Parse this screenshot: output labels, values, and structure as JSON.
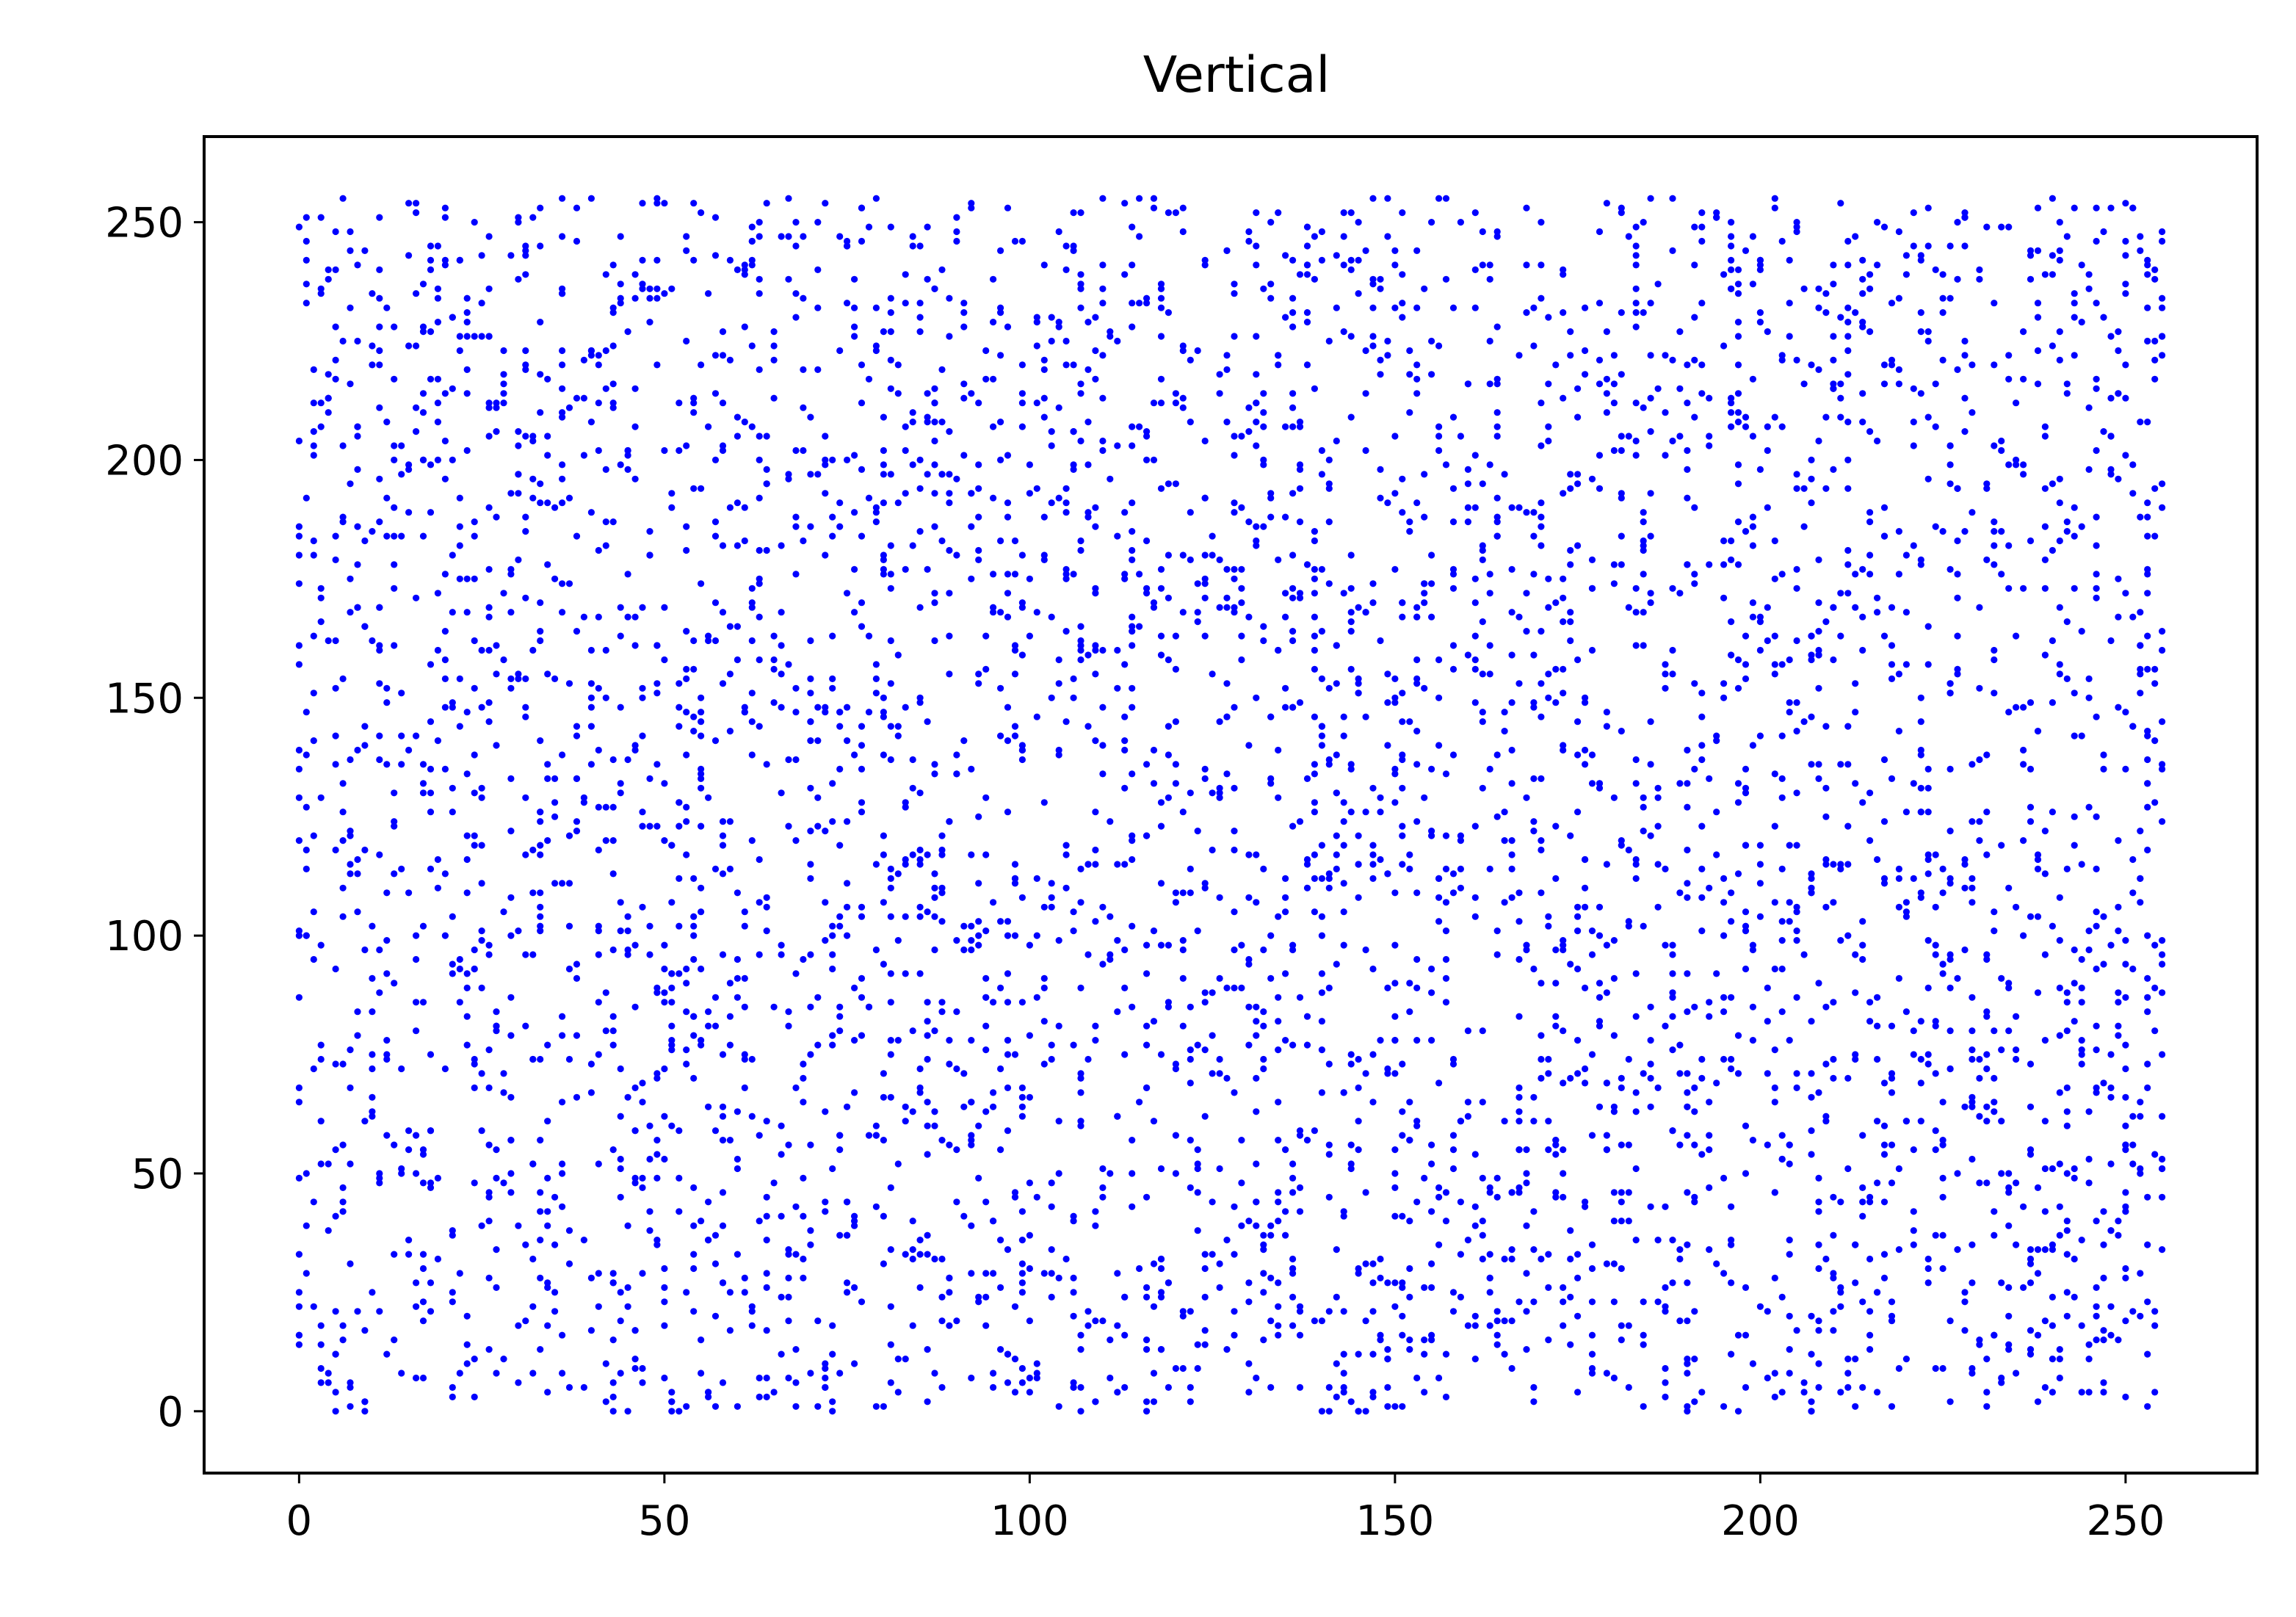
{
  "chart_data": {
    "type": "scatter",
    "title": "Vertical",
    "xlabel": "",
    "ylabel": "",
    "xlim": [
      -13,
      268
    ],
    "ylim": [
      -13,
      268
    ],
    "xticks": [
      0,
      50,
      100,
      150,
      200,
      250
    ],
    "yticks": [
      0,
      50,
      100,
      150,
      200,
      250
    ],
    "grid": false,
    "legend": "none",
    "marker_color": "#0000ff",
    "series": [
      {
        "n_points": 4600,
        "points": [
          [
            0,
            87
          ],
          [
            0,
            139
          ],
          [
            1,
            233
          ],
          [
            1,
            251
          ],
          [
            3,
            14
          ],
          [
            5,
            0
          ],
          [
            6,
            47
          ],
          [
            8,
            207
          ],
          [
            9,
            2
          ],
          [
            11,
            161
          ],
          [
            12,
            99
          ],
          [
            14,
            50
          ],
          [
            15,
            243
          ],
          [
            17,
            33
          ],
          [
            19,
            172
          ],
          [
            20,
            253
          ],
          [
            22,
            8
          ],
          [
            24,
            119
          ],
          [
            26,
            226
          ],
          [
            27,
            81
          ],
          [
            29,
            57
          ],
          [
            31,
            188
          ],
          [
            33,
            13
          ],
          [
            34,
            136
          ],
          [
            36,
            247
          ],
          [
            38,
            66
          ],
          [
            40,
            153
          ],
          [
            41,
            29
          ],
          [
            43,
            212
          ],
          [
            45,
            96
          ],
          [
            47,
            6
          ],
          [
            48,
            180
          ],
          [
            50,
            254
          ],
          [
            52,
            123
          ],
          [
            54,
            47
          ],
          [
            55,
            220
          ],
          [
            57,
            1
          ],
          [
            59,
            165
          ],
          [
            61,
            85
          ],
          [
            62,
            241
          ],
          [
            64,
            36
          ],
          [
            66,
            130
          ],
          [
            68,
            250
          ],
          [
            69,
            70
          ],
          [
            71,
            197
          ],
          [
            73,
            18
          ],
          [
            75,
            111
          ],
          [
            76,
            232
          ],
          [
            78,
            58
          ],
          [
            80,
            150
          ],
          [
            82,
            4
          ],
          [
            83,
            207
          ],
          [
            85,
            92
          ],
          [
            87,
            170
          ],
          [
            89,
            28
          ],
          [
            90,
            246
          ],
          [
            92,
            117
          ],
          [
            94,
            63
          ],
          [
            96,
            183
          ],
          [
            97,
            12
          ],
          [
            99,
            137
          ],
          [
            101,
            224
          ],
          [
            103,
            77
          ],
          [
            104,
            158
          ],
          [
            106,
            20
          ],
          [
            108,
            199
          ],
          [
            110,
            106
          ],
          [
            111,
            50
          ],
          [
            113,
            175
          ],
          [
            115,
            255
          ],
          [
            117,
            2
          ],
          [
            118,
            128
          ],
          [
            120,
            214
          ],
          [
            122,
            69
          ],
          [
            124,
            163
          ],
          [
            125,
            33
          ],
          [
            127,
            244
          ],
          [
            129,
            98
          ],
          [
            131,
            186
          ],
          [
            132,
            15
          ],
          [
            134,
            139
          ],
          [
            136,
            228
          ],
          [
            138,
            57
          ],
          [
            139,
            112
          ],
          [
            141,
            200
          ],
          [
            143,
            41
          ],
          [
            145,
            154
          ],
          [
            146,
            0
          ],
          [
            148,
            236
          ],
          [
            150,
            83
          ],
          [
            152,
            218
          ],
          [
            153,
            154
          ],
          [
            155,
            31
          ],
          [
            157,
            121
          ],
          [
            159,
            205
          ],
          [
            160,
            62
          ],
          [
            162,
            145
          ],
          [
            164,
            247
          ],
          [
            166,
            9
          ],
          [
            167,
            103
          ],
          [
            169,
            189
          ],
          [
            171,
            74
          ],
          [
            173,
            166
          ],
          [
            174,
            24
          ],
          [
            176,
            232
          ],
          [
            178,
            132
          ],
          [
            180,
            46
          ],
          [
            181,
            202
          ],
          [
            183,
            112
          ],
          [
            185,
            255
          ],
          [
            187,
            22
          ],
          [
            188,
            88
          ],
          [
            190,
            178
          ],
          [
            192,
            54
          ],
          [
            194,
            141
          ],
          [
            195,
            224
          ],
          [
            197,
            16
          ],
          [
            199,
            97
          ],
          [
            201,
            190
          ],
          [
            202,
            68
          ],
          [
            204,
            149
          ],
          [
            206,
            236
          ],
          [
            208,
            35
          ],
          [
            209,
            125
          ],
          [
            211,
            209
          ],
          [
            213,
            1
          ],
          [
            215,
            82
          ],
          [
            216,
            171
          ],
          [
            218,
            48
          ],
          [
            220,
            157
          ],
          [
            222,
            243
          ],
          [
            223,
            27
          ],
          [
            225,
            109
          ],
          [
            227,
            194
          ],
          [
            229,
            66
          ],
          [
            230,
            137
          ],
          [
            232,
            220
          ],
          [
            234,
            14
          ],
          [
            236,
            100
          ],
          [
            237,
            183
          ],
          [
            239,
            42
          ],
          [
            241,
            155
          ],
          [
            243,
            233
          ],
          [
            244,
            76
          ],
          [
            246,
            125
          ],
          [
            248,
            205
          ],
          [
            250,
            3
          ],
          [
            251,
            93
          ],
          [
            253,
            177
          ],
          [
            255,
            53
          ],
          [
            2,
            203
          ],
          [
            4,
            240
          ],
          [
            7,
            115
          ],
          [
            9,
            61
          ],
          [
            13,
            190
          ],
          [
            16,
            142
          ],
          [
            18,
            21
          ],
          [
            21,
            230
          ],
          [
            23,
            89
          ],
          [
            25,
            160
          ],
          [
            28,
            11
          ],
          [
            30,
            203
          ],
          [
            32,
            74
          ],
          [
            35,
            128
          ],
          [
            37,
            38
          ],
          [
            39,
            221
          ],
          [
            42,
            182
          ],
          [
            44,
            8
          ],
          [
            46,
            139
          ],
          [
            49,
            54
          ],
          [
            51,
            236
          ],
          [
            53,
            90
          ],
          [
            56,
            163
          ],
          [
            58,
            27
          ],
          [
            60,
            209
          ],
          [
            63,
            116
          ],
          [
            65,
            4
          ],
          [
            67,
            255
          ],
          [
            70,
            151
          ],
          [
            72,
            42
          ],
          [
            74,
            223
          ],
          [
            77,
            79
          ],
          [
            79,
            189
          ],
          [
            81,
            22
          ],
          [
            84,
            137
          ],
          [
            86,
            60
          ],
          [
            88,
            240
          ],
          [
            91,
            102
          ],
          [
            93,
            194
          ],
          [
            95,
            8
          ],
          [
            98,
            155
          ],
          [
            100,
            66
          ],
          [
            102,
            179
          ],
          [
            105,
            32
          ],
          [
            107,
            236
          ],
          [
            109,
            118
          ],
          [
            112,
            84
          ],
          [
            114,
            203
          ],
          [
            116,
            15
          ],
          [
            119,
            144
          ],
          [
            121,
            213
          ],
          [
            123,
            52
          ],
          [
            126,
            130
          ],
          [
            128,
            191
          ],
          [
            130,
            23
          ],
          [
            133,
            250
          ],
          [
            135,
            108
          ],
          [
            137,
            172
          ],
          [
            140,
            0
          ],
          [
            142,
            94
          ],
          [
            144,
            209
          ],
          [
            147,
            65
          ],
          [
            149,
            140
          ],
          [
            151,
            20
          ],
          [
            154,
            197
          ],
          [
            156,
            108
          ],
          [
            158,
            176
          ],
          [
            161,
            39
          ],
          [
            163,
            225
          ],
          [
            165,
            120
          ],
          [
            168,
            55
          ],
          [
            170,
            250
          ],
          [
            172,
            90
          ],
          [
            175,
            182
          ],
          [
            177,
            8
          ],
          [
            179,
            147
          ],
          [
            182,
            74
          ],
          [
            184,
            211
          ],
          [
            186,
            36
          ],
          [
            189,
            132
          ],
          [
            191,
            249
          ],
          [
            193,
            58
          ],
          [
            196,
            166
          ],
          [
            198,
            26
          ],
          [
            200,
            198
          ],
          [
            203,
            84
          ],
          [
            205,
            149
          ],
          [
            207,
            0
          ],
          [
            210,
            226
          ],
          [
            212,
            115
          ],
          [
            214,
            41
          ],
          [
            217,
            184
          ],
          [
            219,
            91
          ],
          [
            221,
            252
          ],
          [
            224,
            37
          ],
          [
            226,
            135
          ],
          [
            228,
            206
          ],
          [
            231,
            61
          ],
          [
            233,
            176
          ],
          [
            235,
            8
          ],
          [
            238,
            116
          ],
          [
            240,
            239
          ],
          [
            242,
            50
          ],
          [
            245,
            150
          ],
          [
            247,
            6
          ],
          [
            249,
            227
          ],
          [
            252,
            107
          ],
          [
            254,
            21
          ],
          [
            255,
            145
          ],
          [
            255,
            226
          ]
        ]
      }
    ]
  }
}
